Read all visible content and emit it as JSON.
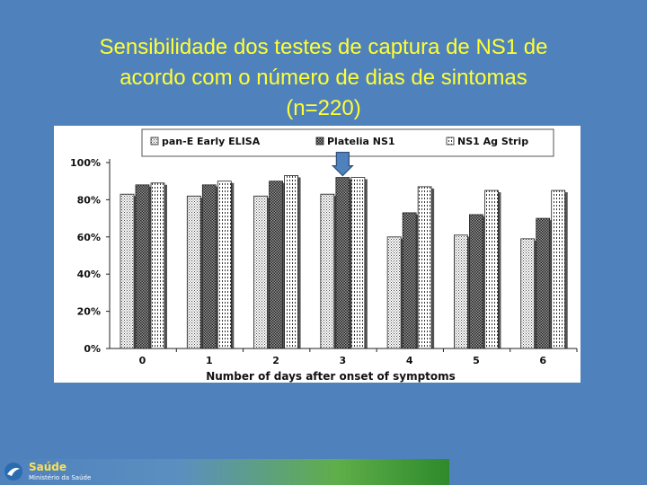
{
  "slide": {
    "title_lines": [
      "Sensibilidade dos testes de captura de NS1 de",
      "acordo com o número de dias de sintomas",
      "(n=220)"
    ],
    "background": "#4f81bd",
    "title_color": "#ffff33"
  },
  "footer": {
    "name": "Saúde",
    "sub": "Ministério da Saúde"
  },
  "chart_data": {
    "type": "bar",
    "xlabel": "Number of days after onset of symptoms",
    "ylabel": "",
    "categories": [
      "0",
      "1",
      "2",
      "3",
      "4",
      "5",
      "6"
    ],
    "ylim": [
      0,
      100
    ],
    "yticks": [
      "0%",
      "20%",
      "40%",
      "60%",
      "80%",
      "100%"
    ],
    "grid": false,
    "legend_position": "top",
    "series": [
      {
        "name": "pan-E Early ELISA",
        "values": [
          83,
          82,
          82,
          83,
          60,
          61,
          59
        ]
      },
      {
        "name": "Platelia NS1",
        "values": [
          88,
          88,
          90,
          92,
          73,
          72,
          70
        ]
      },
      {
        "name": "NS1 Ag Strip",
        "values": [
          89,
          90,
          93,
          92,
          87,
          85,
          85
        ]
      }
    ],
    "highlight": {
      "category": "3",
      "marker": "arrow"
    }
  }
}
